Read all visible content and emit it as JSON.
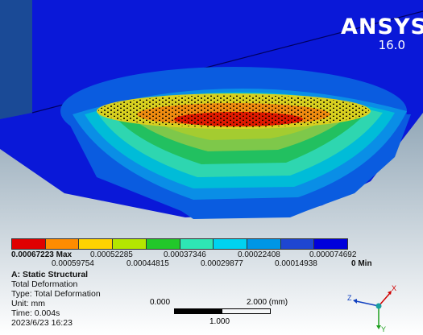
{
  "brand": {
    "name": "ANSYS",
    "version": "16.0"
  },
  "legend": {
    "colors": [
      "#e00000",
      "#ff8c00",
      "#ffd200",
      "#b4e600",
      "#22c82a",
      "#2ee6b4",
      "#00d2f0",
      "#0096e6",
      "#1e46d2",
      "#0000dc"
    ],
    "top_labels": [
      "0.00067223 Max",
      "0.00052285",
      "0.00037346",
      "0.00022408",
      "0.000074692"
    ],
    "bottom_labels": [
      "0.00059754",
      "0.00044815",
      "0.00029877",
      "0.00014938",
      "0 Min"
    ]
  },
  "info": {
    "title": "A: Static Structural",
    "line1": "Total Deformation",
    "line2": "Type: Total Deformation",
    "line3": "Unit: mm",
    "line4": "Time: 0.004s",
    "line5": "2023/6/23 16:23"
  },
  "scale": {
    "left": "0.000",
    "right": "2.000 (mm)",
    "mid": "1.000"
  },
  "triad": {
    "x": "X",
    "y": "Y",
    "z": "Z"
  }
}
